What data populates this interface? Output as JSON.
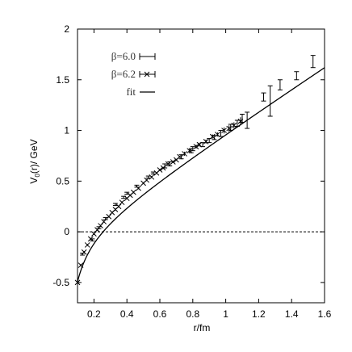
{
  "chart_data": {
    "type": "scatter",
    "xlabel": "r/fm",
    "ylabel": "V",
    "ylabel_subscript": "0",
    "ylabel_suffix": "(r)/ GeV",
    "xlim": [
      0.1,
      1.6
    ],
    "ylim": [
      -0.7,
      2.0
    ],
    "x_ticks": [
      0.2,
      0.4,
      0.6,
      0.8,
      1.0,
      1.2,
      1.4,
      1.6
    ],
    "x_tick_labels": [
      "0.2",
      "0.4",
      "0.6",
      "0.8",
      "1",
      "1.2",
      "1.4",
      "1.6"
    ],
    "y_ticks": [
      -0.5,
      0,
      0.5,
      1,
      1.5,
      2
    ],
    "y_tick_labels": [
      "-0.5",
      "0",
      "0.5",
      "1",
      "1.5",
      "2"
    ],
    "zero_line": true,
    "grid": false,
    "legend_position": "top-left",
    "series": [
      {
        "name": "β=6.0",
        "marker": "errorbar",
        "x": [
          0.13,
          0.19,
          0.23,
          0.27,
          0.33,
          0.38,
          0.4,
          0.46,
          0.53,
          0.56,
          0.63,
          0.66,
          0.73,
          0.79,
          0.8,
          0.86,
          0.9,
          0.93,
          0.97,
          1.03,
          1.07,
          1.1,
          1.13,
          1.23,
          1.27,
          1.33,
          1.43,
          1.53
        ],
        "y": [
          -0.22,
          -0.08,
          0.04,
          0.13,
          0.27,
          0.34,
          0.38,
          0.45,
          0.54,
          0.58,
          0.65,
          0.67,
          0.74,
          0.8,
          0.82,
          0.86,
          0.9,
          0.93,
          0.97,
          1.03,
          1.07,
          1.12,
          1.1,
          1.33,
          1.29,
          1.45,
          1.54,
          1.68
        ],
        "err": [
          0.01,
          0.01,
          0.01,
          0.01,
          0.01,
          0.01,
          0.01,
          0.01,
          0.01,
          0.01,
          0.02,
          0.02,
          0.02,
          0.02,
          0.02,
          0.02,
          0.02,
          0.02,
          0.03,
          0.03,
          0.03,
          0.04,
          0.08,
          0.04,
          0.15,
          0.05,
          0.04,
          0.06
        ]
      },
      {
        "name": "β=6.2",
        "marker": "cross",
        "x": [
          0.1,
          0.12,
          0.14,
          0.16,
          0.18,
          0.2,
          0.22,
          0.24,
          0.26,
          0.29,
          0.31,
          0.33,
          0.35,
          0.37,
          0.4,
          0.42,
          0.44,
          0.47,
          0.5,
          0.52,
          0.55,
          0.58,
          0.6,
          0.62,
          0.65,
          0.68,
          0.7,
          0.72,
          0.75,
          0.78,
          0.82,
          0.84,
          0.88,
          0.92,
          0.95,
          0.99,
          1.02,
          1.05,
          1.09
        ],
        "y": [
          -0.5,
          -0.33,
          -0.2,
          -0.13,
          -0.07,
          -0.02,
          0.02,
          0.06,
          0.1,
          0.15,
          0.19,
          0.22,
          0.25,
          0.29,
          0.33,
          0.36,
          0.39,
          0.43,
          0.48,
          0.51,
          0.54,
          0.58,
          0.61,
          0.63,
          0.67,
          0.69,
          0.71,
          0.74,
          0.77,
          0.8,
          0.84,
          0.86,
          0.89,
          0.94,
          0.96,
          1.0,
          1.02,
          1.05,
          1.09
        ],
        "err": [
          0.01,
          0.01,
          0.01,
          0.01,
          0.01,
          0.01,
          0.01,
          0.01,
          0.01,
          0.01,
          0.01,
          0.01,
          0.01,
          0.01,
          0.01,
          0.01,
          0.01,
          0.01,
          0.01,
          0.01,
          0.01,
          0.01,
          0.01,
          0.01,
          0.01,
          0.01,
          0.01,
          0.01,
          0.02,
          0.02,
          0.02,
          0.02,
          0.02,
          0.02,
          0.02,
          0.03,
          0.03,
          0.03,
          0.04
        ]
      },
      {
        "name": "fit",
        "marker": "line",
        "function": "a + b*r - c/r",
        "a": -0.064,
        "b": 1.073,
        "c": 0.0537
      }
    ]
  }
}
